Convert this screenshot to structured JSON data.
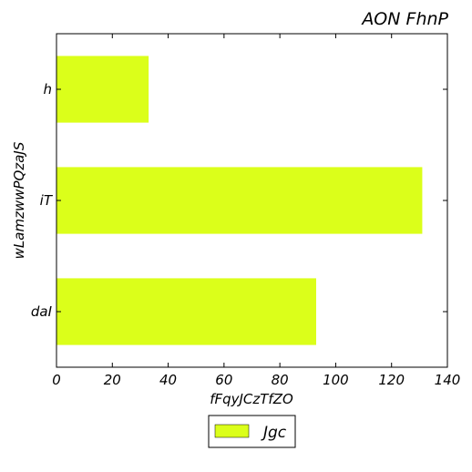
{
  "chart_data": {
    "type": "bar",
    "orientation": "horizontal",
    "title": "AON FhnP",
    "xlabel": "fFqyJCzTfZO",
    "ylabel": "wLamzwwPQzaJS",
    "categories": [
      "daI",
      "iT",
      "h"
    ],
    "series": [
      {
        "name": "Jgc",
        "values": [
          93,
          131,
          33
        ],
        "color": "#dbff1a"
      }
    ],
    "xlim": [
      0,
      140
    ],
    "xticks": [
      0,
      20,
      40,
      60,
      80,
      100,
      120,
      140
    ],
    "grid": false,
    "legend_position": "bottom-center"
  }
}
